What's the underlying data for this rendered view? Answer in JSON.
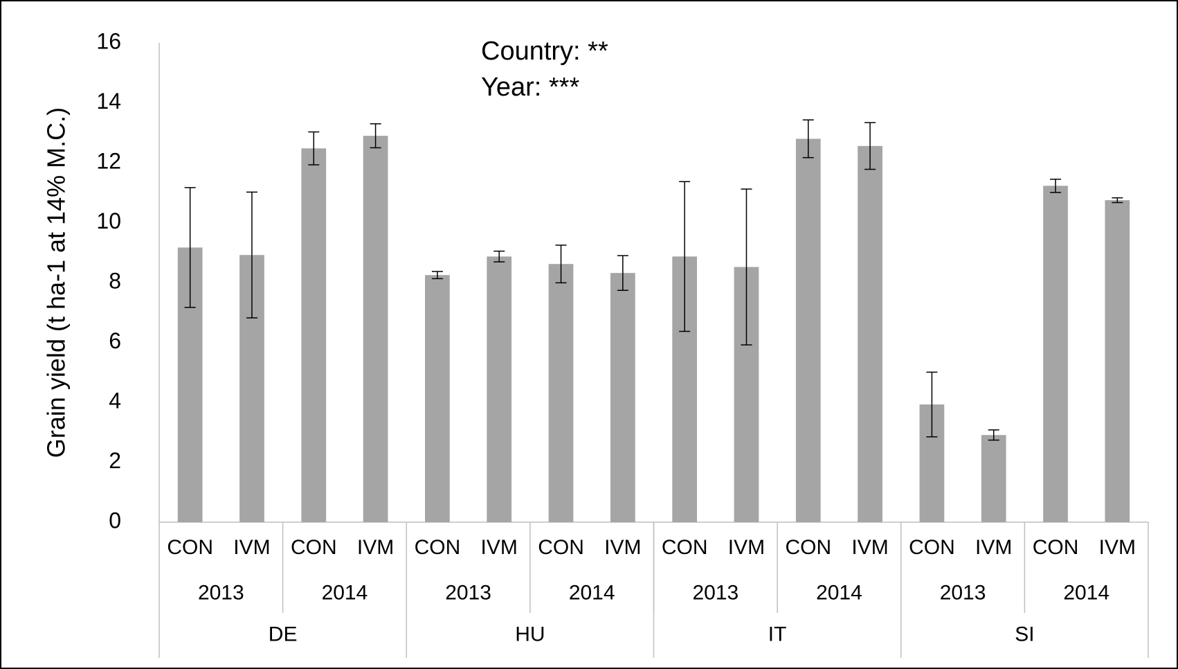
{
  "chart_data": {
    "type": "bar",
    "y_label": "Grain yield (t ha-1 at 14% M.C.)",
    "annotations": [
      "Country: **",
      "Year: ***"
    ],
    "categories": [
      "CON",
      "IVM",
      "CON",
      "IVM",
      "CON",
      "IVM",
      "CON",
      "IVM",
      "CON",
      "IVM",
      "CON",
      "IVM",
      "CON",
      "IVM",
      "CON",
      "IVM"
    ],
    "years": [
      "2013",
      "2014",
      "2013",
      "2014",
      "2013",
      "2014",
      "2013",
      "2014"
    ],
    "countries": [
      "DE",
      "HU",
      "IT",
      "SI"
    ],
    "values": [
      9.17,
      8.92,
      12.48,
      12.9,
      8.25,
      8.87,
      8.62,
      8.32,
      8.87,
      8.52,
      12.8,
      12.56,
      3.93,
      2.91,
      11.23,
      10.75
    ],
    "errors": [
      2.0,
      2.1,
      0.55,
      0.4,
      0.12,
      0.18,
      0.63,
      0.58,
      2.5,
      2.6,
      0.63,
      0.78,
      1.08,
      0.17,
      0.22,
      0.08
    ],
    "color": "#a5a5a5",
    "ylim": [
      0,
      16
    ],
    "yticks": [
      0,
      2,
      4,
      6,
      8,
      10,
      12,
      14,
      16
    ],
    "grid": false
  }
}
